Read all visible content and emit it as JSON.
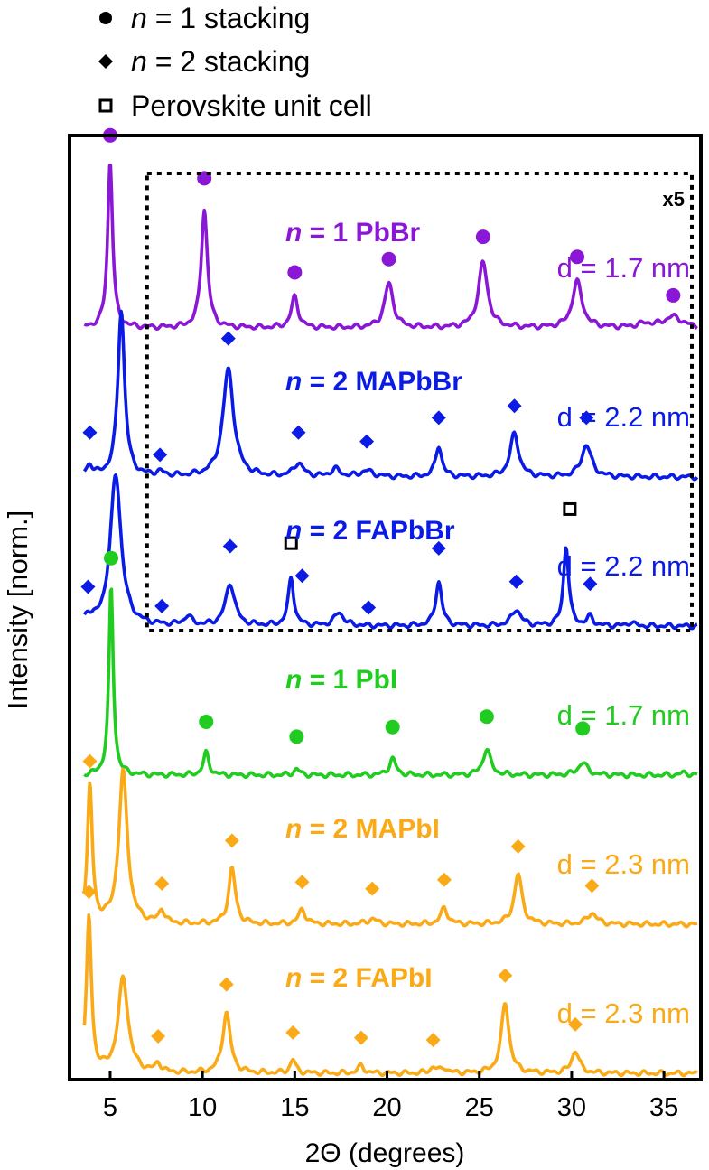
{
  "chart_data": {
    "type": "line",
    "title": "",
    "xlabel": "2Θ (degrees)",
    "ylabel": "Intensity [norm.]",
    "xlim": [
      2.8,
      37.0
    ],
    "xticks": [
      5,
      10,
      15,
      20,
      25,
      30,
      35
    ],
    "xtick_labels": [
      "5",
      "10",
      "15",
      "20",
      "25",
      "30",
      "35"
    ],
    "grid": false,
    "legend_position": "top-left, above plot",
    "legend": [
      {
        "marker": "circle",
        "italic": "n",
        "label": " = 1 stacking"
      },
      {
        "marker": "diamond",
        "italic": "n",
        "label": " = 2 stacking"
      },
      {
        "marker": "open-square",
        "italic": "",
        "label": "Perovskite unit cell"
      }
    ],
    "inset": {
      "label": "x5",
      "x_range": [
        7.0,
        37.0
      ],
      "applies_to": [
        "n = 1 PbBr",
        "n = 2 MAPbBr",
        "n = 2 FAPbBr"
      ]
    },
    "series": [
      {
        "name": "n = 1 PbBr",
        "italic": "n",
        "name_rest": " = 1 PbBr",
        "d_label": "d = 1.7 nm",
        "color": "#8a17d6",
        "offset": 5,
        "scale": 1.0,
        "peaks": [
          [
            5.0,
            2.25,
            0.16
          ],
          [
            10.1,
            1.6,
            0.2
          ],
          [
            15.0,
            0.42,
            0.22
          ],
          [
            20.1,
            0.6,
            0.28
          ],
          [
            25.2,
            0.88,
            0.3
          ],
          [
            30.3,
            0.62,
            0.32
          ],
          [
            35.5,
            0.15,
            0.6
          ],
          [
            34.0,
            0.05,
            0.5
          ]
        ],
        "markers": [
          {
            "x": 5.0,
            "y": 2.6,
            "shape": "circle"
          },
          {
            "x": 10.1,
            "y": 2.02,
            "shape": "circle"
          },
          {
            "x": 15.0,
            "y": 0.75,
            "shape": "circle"
          },
          {
            "x": 20.1,
            "y": 0.93,
            "shape": "circle"
          },
          {
            "x": 25.2,
            "y": 1.23,
            "shape": "circle"
          },
          {
            "x": 30.3,
            "y": 0.96,
            "shape": "circle"
          },
          {
            "x": 35.5,
            "y": 0.44,
            "shape": "circle"
          }
        ]
      },
      {
        "name": "n = 2 MAPbBr",
        "italic": "n",
        "name_rest": " = 2 MAPbBr",
        "d_label": "d = 2.2 nm",
        "color": "#0b1be6",
        "offset": 4,
        "scale": 1.0,
        "peaks": [
          [
            5.6,
            2.25,
            0.22
          ],
          [
            3.9,
            0.15,
            0.2
          ],
          [
            7.7,
            0.05,
            0.3
          ],
          [
            11.4,
            1.45,
            0.35
          ],
          [
            15.2,
            0.18,
            0.3
          ],
          [
            17.2,
            0.1,
            0.3
          ],
          [
            18.9,
            0.08,
            0.4
          ],
          [
            22.8,
            0.42,
            0.2
          ],
          [
            26.9,
            0.58,
            0.28
          ],
          [
            30.8,
            0.43,
            0.32
          ]
        ],
        "markers": [
          {
            "x": 3.9,
            "y": 0.6,
            "shape": "diamond"
          },
          {
            "x": 7.7,
            "y": 0.3,
            "shape": "diamond"
          },
          {
            "x": 11.4,
            "y": 1.87,
            "shape": "diamond"
          },
          {
            "x": 15.2,
            "y": 0.6,
            "shape": "diamond"
          },
          {
            "x": 18.9,
            "y": 0.48,
            "shape": "diamond"
          },
          {
            "x": 22.8,
            "y": 0.8,
            "shape": "diamond"
          },
          {
            "x": 26.9,
            "y": 0.96,
            "shape": "diamond"
          },
          {
            "x": 30.8,
            "y": 0.8,
            "shape": "diamond"
          }
        ]
      },
      {
        "name": "n = 2 FAPbBr",
        "italic": "n",
        "name_rest": " = 2 FAPbBr",
        "d_label": "d = 2.2 nm",
        "color": "#0b1be6",
        "offset": 3,
        "scale": 1.0,
        "peaks": [
          [
            5.3,
            2.05,
            0.35
          ],
          [
            3.8,
            0.12,
            0.2
          ],
          [
            9.2,
            0.12,
            0.25
          ],
          [
            11.5,
            0.57,
            0.3
          ],
          [
            14.8,
            0.65,
            0.18
          ],
          [
            17.4,
            0.18,
            0.3
          ],
          [
            22.8,
            0.6,
            0.2
          ],
          [
            27.0,
            0.22,
            0.3
          ],
          [
            29.7,
            1.08,
            0.17
          ],
          [
            31.0,
            0.12,
            0.2
          ],
          [
            33.2,
            0.05,
            0.2
          ]
        ],
        "markers": [
          {
            "x": 3.8,
            "y": 0.53,
            "shape": "diamond"
          },
          {
            "x": 7.8,
            "y": 0.27,
            "shape": "diamond"
          },
          {
            "x": 11.5,
            "y": 1.08,
            "shape": "diamond"
          },
          {
            "x": 14.8,
            "y": 1.12,
            "shape": "square"
          },
          {
            "x": 15.4,
            "y": 0.68,
            "shape": "diamond"
          },
          {
            "x": 19.0,
            "y": 0.25,
            "shape": "diamond"
          },
          {
            "x": 22.8,
            "y": 1.05,
            "shape": "diamond"
          },
          {
            "x": 27.0,
            "y": 0.6,
            "shape": "diamond"
          },
          {
            "x": 29.9,
            "y": 1.58,
            "shape": "square"
          },
          {
            "x": 31.0,
            "y": 0.57,
            "shape": "diamond"
          }
        ]
      },
      {
        "name": "n = 1 PbI",
        "italic": "n",
        "name_rest": " = 1 PbI",
        "d_label": "d = 1.7 nm",
        "color": "#1fcc1f",
        "offset": 2,
        "scale": 1.0,
        "peaks": [
          [
            5.05,
            2.55,
            0.14
          ],
          [
            10.2,
            0.3,
            0.18
          ],
          [
            15.1,
            0.08,
            0.2
          ],
          [
            20.3,
            0.22,
            0.22
          ],
          [
            25.4,
            0.35,
            0.25
          ],
          [
            30.6,
            0.17,
            0.3
          ],
          [
            36.1,
            0.03,
            0.3
          ]
        ],
        "markers": [
          {
            "x": 5.05,
            "y": 2.93,
            "shape": "circle"
          },
          {
            "x": 10.2,
            "y": 0.72,
            "shape": "circle"
          },
          {
            "x": 15.1,
            "y": 0.52,
            "shape": "circle"
          },
          {
            "x": 20.3,
            "y": 0.65,
            "shape": "circle"
          },
          {
            "x": 25.4,
            "y": 0.79,
            "shape": "circle"
          },
          {
            "x": 30.6,
            "y": 0.63,
            "shape": "circle"
          }
        ]
      },
      {
        "name": "n = 2 MAPbI",
        "italic": "n",
        "name_rest": " = 2 MAPbI",
        "d_label": "d = 2.3 nm",
        "color": "#fbaa17",
        "offset": 1,
        "scale": 1.0,
        "peaks": [
          [
            3.9,
            1.85,
            0.16
          ],
          [
            5.7,
            2.05,
            0.28
          ],
          [
            7.8,
            0.18,
            0.18
          ],
          [
            11.6,
            0.75,
            0.22
          ],
          [
            15.4,
            0.2,
            0.22
          ],
          [
            19.2,
            0.07,
            0.3
          ],
          [
            23.1,
            0.22,
            0.22
          ],
          [
            27.1,
            0.68,
            0.25
          ],
          [
            31.1,
            0.15,
            0.3
          ]
        ],
        "markers": [
          {
            "x": 3.9,
            "y": 2.2,
            "shape": "diamond"
          },
          {
            "x": 7.8,
            "y": 0.55,
            "shape": "diamond"
          },
          {
            "x": 11.6,
            "y": 1.13,
            "shape": "diamond"
          },
          {
            "x": 15.4,
            "y": 0.57,
            "shape": "diamond"
          },
          {
            "x": 19.2,
            "y": 0.48,
            "shape": "diamond"
          },
          {
            "x": 23.1,
            "y": 0.6,
            "shape": "diamond"
          },
          {
            "x": 27.1,
            "y": 1.05,
            "shape": "diamond"
          },
          {
            "x": 31.1,
            "y": 0.52,
            "shape": "diamond"
          }
        ]
      },
      {
        "name": "n = 2 FAPbI",
        "italic": "n",
        "name_rest": " = 2 FAPbI",
        "d_label": "d = 2.3 nm",
        "color": "#fbaa17",
        "offset": 0,
        "scale": 1.0,
        "peaks": [
          [
            3.85,
            2.1,
            0.16
          ],
          [
            5.7,
            1.28,
            0.32
          ],
          [
            7.6,
            0.12,
            0.18
          ],
          [
            11.3,
            0.82,
            0.25
          ],
          [
            14.9,
            0.18,
            0.18
          ],
          [
            18.6,
            0.1,
            0.2
          ],
          [
            22.5,
            0.08,
            0.2
          ],
          [
            23.1,
            0.07,
            0.2
          ],
          [
            26.4,
            0.95,
            0.25
          ],
          [
            30.2,
            0.3,
            0.25
          ]
        ],
        "markers": [
          {
            "x": 3.85,
            "y": 2.45,
            "shape": "diamond"
          },
          {
            "x": 7.6,
            "y": 0.5,
            "shape": "diamond"
          },
          {
            "x": 11.3,
            "y": 1.2,
            "shape": "diamond"
          },
          {
            "x": 14.9,
            "y": 0.55,
            "shape": "diamond"
          },
          {
            "x": 18.6,
            "y": 0.48,
            "shape": "diamond"
          },
          {
            "x": 22.5,
            "y": 0.45,
            "shape": "diamond"
          },
          {
            "x": 26.4,
            "y": 1.32,
            "shape": "diamond"
          },
          {
            "x": 30.2,
            "y": 0.66,
            "shape": "diamond"
          }
        ]
      }
    ]
  }
}
